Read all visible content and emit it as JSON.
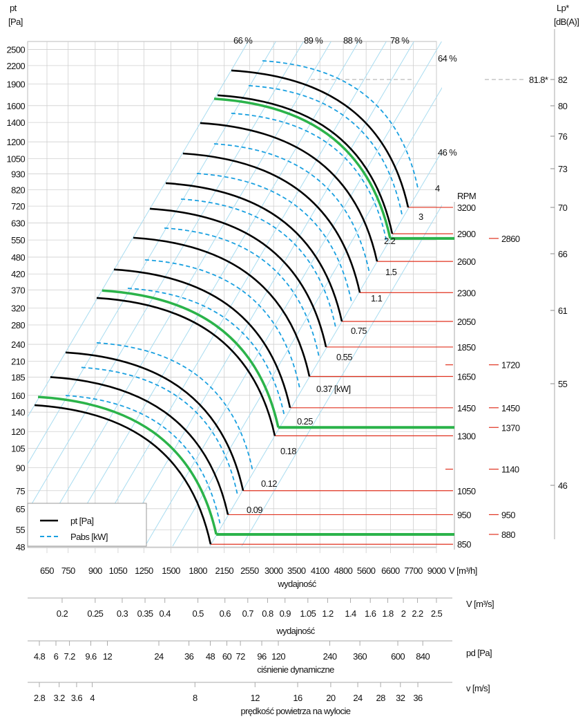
{
  "chart_data": {
    "type": "line",
    "title": "",
    "ylabel": "pt",
    "ylabel_unit": "[Pa]",
    "xlabel": "wydajność",
    "x_unit_label": "V [m³/h]",
    "right_axis_label": "RPM",
    "lp_label": "Lp*",
    "lp_unit": "[dB(A)]",
    "x_scale": "log",
    "y_scale": "log",
    "xlim": [
      600,
      9600
    ],
    "ylim": [
      46,
      2700
    ],
    "grid": true,
    "legend_placement": "bottom-left",
    "legend": [
      {
        "label": "pt [Pa]",
        "style": "solid",
        "color": "#000000"
      },
      {
        "label": "Pabs [kW]",
        "style": "dashed",
        "color": "#1aa0e0"
      }
    ],
    "y_ticks": [
      2500,
      2200,
      1900,
      1600,
      1400,
      1200,
      1050,
      930,
      820,
      720,
      630,
      550,
      480,
      420,
      370,
      320,
      280,
      240,
      210,
      185,
      160,
      140,
      120,
      105,
      90,
      75,
      65,
      55,
      48
    ],
    "x_ticks": [
      650,
      750,
      900,
      1050,
      1250,
      1500,
      1800,
      2150,
      2550,
      3000,
      3500,
      4100,
      4800,
      5600,
      6600,
      7700,
      9000
    ],
    "rpm_curves": [
      {
        "rpm": 3200,
        "start": [
          2256,
          2116
        ],
        "end": [
          7436,
          713
        ],
        "highlight": false
      },
      {
        "rpm": 2900,
        "start": [
          2055,
          1737
        ],
        "end": [
          6680,
          578
        ],
        "highlight": false
      },
      {
        "rpm": 2860,
        "start": [
          2008,
          1690
        ],
        "end": [
          6587,
          557
        ],
        "highlight": true
      },
      {
        "rpm": 2600,
        "start": [
          1828,
          1394
        ],
        "end": [
          6028,
          464
        ],
        "highlight": false
      },
      {
        "rpm": 2300,
        "start": [
          1627,
          1094
        ],
        "end": [
          5367,
          362
        ],
        "highlight": false
      },
      {
        "rpm": 2050,
        "start": [
          1449,
          864
        ],
        "end": [
          4754,
          288
        ],
        "highlight": false
      },
      {
        "rpm": 1850,
        "start": [
          1302,
          705
        ],
        "end": [
          4272,
          235
        ],
        "highlight": false
      },
      {
        "rpm": 1650,
        "start": [
          1164,
          560
        ],
        "end": [
          3819,
          186
        ],
        "highlight": false
      },
      {
        "rpm": 1450,
        "start": [
          1021,
          435
        ],
        "end": [
          3352,
          145
        ],
        "highlight": false
      },
      {
        "rpm": 1370,
        "start": [
          943,
          368
        ],
        "end": [
          3096,
          124
        ],
        "highlight": true
      },
      {
        "rpm": 1300,
        "start": [
          909,
          347
        ],
        "end": [
          3025,
          116
        ],
        "highlight": false
      },
      {
        "rpm": 1050,
        "start": [
          737,
          225
        ],
        "end": [
          2442,
          75
        ],
        "highlight": false
      },
      {
        "rpm": 950,
        "start": [
          665,
          185
        ],
        "end": [
          2204,
          62
        ],
        "highlight": false
      },
      {
        "rpm": 880,
        "start": [
          612,
          158
        ],
        "end": [
          2037,
          53
        ],
        "highlight": true
      },
      {
        "rpm": 850,
        "start": [
          598,
          148
        ],
        "end": [
          1961,
          49
        ],
        "highlight": false
      }
    ],
    "rpm_labels": [
      {
        "rpm": "3200",
        "p": 713
      },
      {
        "rpm": "2900",
        "p": 578
      },
      {
        "rpm": "2600",
        "p": 464
      },
      {
        "rpm": "2300",
        "p": 362
      },
      {
        "rpm": "2050",
        "p": 288
      },
      {
        "rpm": "1850",
        "p": 235
      },
      {
        "rpm": "1650",
        "p": 186
      },
      {
        "rpm": "1450",
        "p": 145
      },
      {
        "rpm": "1300",
        "p": 116
      },
      {
        "rpm": "1050",
        "p": 75
      },
      {
        "rpm": "950",
        "p": 62
      },
      {
        "rpm": "850",
        "p": 49
      }
    ],
    "rpm_alt_labels": [
      {
        "rpm": "2860",
        "p": 557
      },
      {
        "rpm": "1720",
        "p": 204
      },
      {
        "rpm": "1450",
        "p": 145
      },
      {
        "rpm": "1370",
        "p": 124
      },
      {
        "rpm": "1140",
        "p": 89
      },
      {
        "rpm": "950",
        "p": 62
      },
      {
        "rpm": "880",
        "p": 53
      }
    ],
    "power_labels_kw": [
      "4",
      "3",
      "2.2",
      "1.5",
      "1.1",
      "0.75",
      "0.55",
      "0.37  [kW]",
      "0.25",
      "0.18",
      "0.12",
      "0.09"
    ],
    "efficiency_labels": [
      "66 %",
      "89 %",
      "88 %",
      "78 %",
      "64 %",
      "46 %"
    ],
    "lp_ticks": [
      "82",
      "80",
      "76",
      "73",
      "70",
      "66",
      "61",
      "55",
      "46"
    ],
    "lp_marker": "81.8*",
    "secondary_scales": [
      {
        "unit": "V  [m³/s]",
        "title": "wydajność",
        "ticks": [
          "0.2",
          "0.25",
          "0.3",
          "0.35",
          "0.4",
          "0.5",
          "0.6",
          "0.7",
          "0.8",
          "0.9",
          "1.05",
          "1.2",
          "1.4",
          "1.6",
          "1.8",
          "2",
          "2.2",
          "2.5"
        ]
      },
      {
        "unit": "pd  [Pa]",
        "title": "ciśnienie dynamiczne",
        "ticks": [
          "4.8",
          "6",
          "7.2",
          "9.6",
          "12",
          "24",
          "36",
          "48",
          "60",
          "72",
          "96",
          "120",
          "240",
          "360",
          "600",
          "840"
        ]
      },
      {
        "unit": "v  [m/s]",
        "title": "prędkość powietrza na wylocie",
        "ticks": [
          "2.8",
          "3.2",
          "3.6",
          "4",
          "8",
          "12",
          "16",
          "20",
          "24",
          "28",
          "32",
          "36"
        ]
      }
    ],
    "colors": {
      "curve": "#000000",
      "highlight": "#2bb34a",
      "power": "#1aa0e0",
      "efficiency": "#a8dcf0",
      "rpm_line": "#e0301e",
      "grid": "#cfcfcf"
    }
  }
}
